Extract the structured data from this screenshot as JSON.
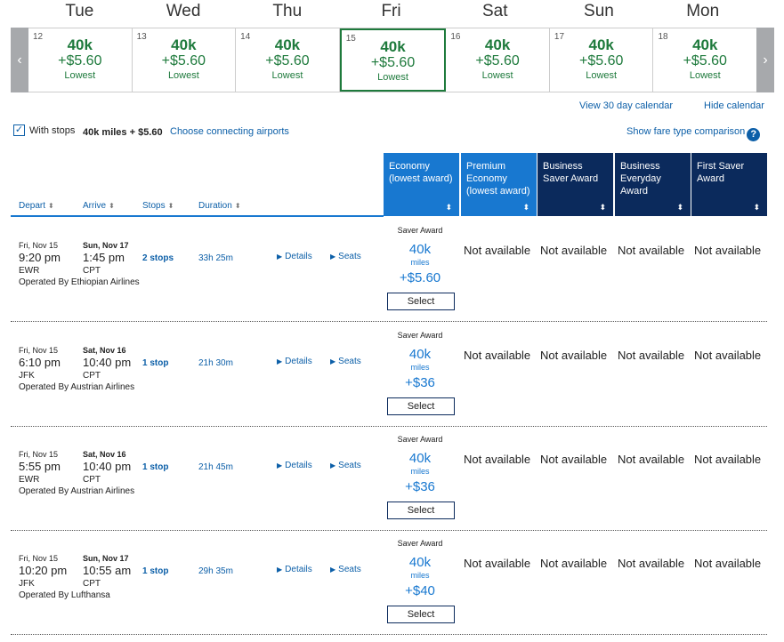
{
  "calendar": {
    "prev_arrow": "‹",
    "next_arrow": "›",
    "day_names": [
      "Tue",
      "Wed",
      "Thu",
      "Fri",
      "Sat",
      "Sun",
      "Mon"
    ],
    "days": [
      {
        "num": "12",
        "miles": "40k",
        "fee": "+$5.60",
        "label": "Lowest",
        "selected": false
      },
      {
        "num": "13",
        "miles": "40k",
        "fee": "+$5.60",
        "label": "Lowest",
        "selected": false
      },
      {
        "num": "14",
        "miles": "40k",
        "fee": "+$5.60",
        "label": "Lowest",
        "selected": false
      },
      {
        "num": "15",
        "miles": "40k",
        "fee": "+$5.60",
        "label": "Lowest",
        "selected": true
      },
      {
        "num": "16",
        "miles": "40k",
        "fee": "+$5.60",
        "label": "Lowest",
        "selected": false
      },
      {
        "num": "17",
        "miles": "40k",
        "fee": "+$5.60",
        "label": "Lowest",
        "selected": false
      },
      {
        "num": "18",
        "miles": "40k",
        "fee": "+$5.60",
        "label": "Lowest",
        "selected": false
      }
    ],
    "view_30_day": "View 30 day calendar",
    "hide_calendar": "Hide calendar"
  },
  "filters": {
    "with_stops_label": "With stops",
    "with_stops_checked": true,
    "with_stops_price": "40k miles + $5.60",
    "choose_connecting": "Choose connecting airports",
    "show_fare_comparison": "Show fare type comparison",
    "info_icon": "?"
  },
  "columns": {
    "depart": "Depart",
    "arrive": "Arrive",
    "stops": "Stops",
    "duration": "Duration",
    "sort_icon": "⬍"
  },
  "fare_types": [
    {
      "label": "Economy (lowest award)",
      "style": "econ"
    },
    {
      "label": "Premium Economy (lowest award)",
      "style": "prem"
    },
    {
      "label": "Business Saver Award",
      "style": "dark"
    },
    {
      "label": "Business Everyday Award",
      "style": "dark"
    },
    {
      "label": "First Saver Award",
      "style": "dark"
    }
  ],
  "flights": [
    {
      "depart_date": "Fri, Nov 15",
      "depart_time": "9:20 pm",
      "depart_code": "EWR",
      "arrive_date": "Sun, Nov 17",
      "arrive_time": "1:45 pm",
      "arrive_code": "CPT",
      "operator": "Operated By Ethiopian Airlines",
      "stops": "2 stops",
      "duration": "33h 25m",
      "details": "Details",
      "seats": "Seats",
      "saver_label": "Saver Award",
      "miles": "40k",
      "miles_unit": "miles",
      "fee": "+$5.60",
      "select": "Select",
      "not_available": [
        "Not available",
        "Not available",
        "Not available",
        "Not available"
      ]
    },
    {
      "depart_date": "Fri, Nov 15",
      "depart_time": "6:10 pm",
      "depart_code": "JFK",
      "arrive_date": "Sat, Nov 16",
      "arrive_time": "10:40 pm",
      "arrive_code": "CPT",
      "operator": "Operated By Austrian Airlines",
      "stops": "1 stop",
      "duration": "21h 30m",
      "details": "Details",
      "seats": "Seats",
      "saver_label": "Saver Award",
      "miles": "40k",
      "miles_unit": "miles",
      "fee": "+$36",
      "select": "Select",
      "not_available": [
        "Not available",
        "Not available",
        "Not available",
        "Not available"
      ]
    },
    {
      "depart_date": "Fri, Nov 15",
      "depart_time": "5:55 pm",
      "depart_code": "EWR",
      "arrive_date": "Sat, Nov 16",
      "arrive_time": "10:40 pm",
      "arrive_code": "CPT",
      "operator": "Operated By Austrian Airlines",
      "stops": "1 stop",
      "duration": "21h 45m",
      "details": "Details",
      "seats": "Seats",
      "saver_label": "Saver Award",
      "miles": "40k",
      "miles_unit": "miles",
      "fee": "+$36",
      "select": "Select",
      "not_available": [
        "Not available",
        "Not available",
        "Not available",
        "Not available"
      ]
    },
    {
      "depart_date": "Fri, Nov 15",
      "depart_time": "10:20 pm",
      "depart_code": "JFK",
      "arrive_date": "Sun, Nov 17",
      "arrive_time": "10:55 am",
      "arrive_code": "CPT",
      "operator": "Operated By Lufthansa",
      "stops": "1 stop",
      "duration": "29h 35m",
      "details": "Details",
      "seats": "Seats",
      "saver_label": "Saver Award",
      "miles": "40k",
      "miles_unit": "miles",
      "fee": "+$40",
      "select": "Select",
      "not_available": [
        "Not available",
        "Not available",
        "Not available",
        "Not available"
      ]
    }
  ],
  "colors": {
    "lowest_green": "#1e7a3c",
    "link_blue": "#0c5fa8",
    "economy_blue": "#1878d0",
    "premium_navy": "#0b2a5c",
    "arrow_gray": "#a7a9ac"
  }
}
